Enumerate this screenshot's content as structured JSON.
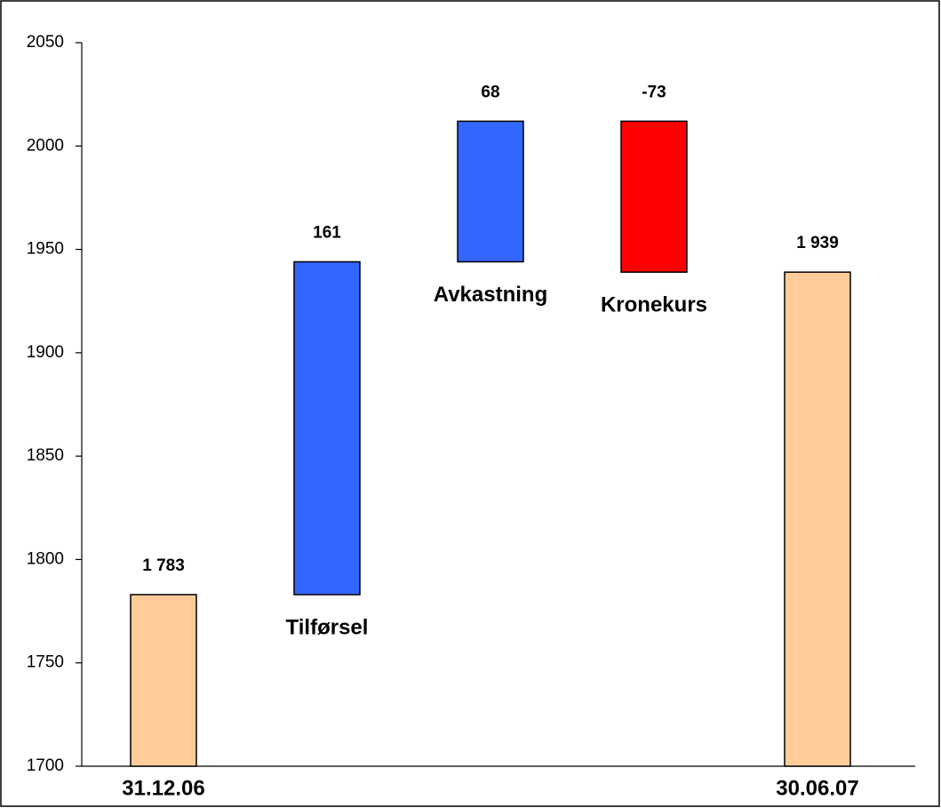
{
  "chart_data": {
    "type": "waterfall",
    "categories": [
      "31.12.06",
      "Tilførsel",
      "Avkastning",
      "Kronekurs",
      "30.06.07"
    ],
    "values": [
      1783,
      161,
      68,
      -73,
      1939
    ],
    "value_labels": [
      "1 783",
      "161",
      "68",
      "-73",
      "1 939"
    ],
    "measure": [
      "absolute",
      "relative",
      "relative",
      "relative",
      "total"
    ],
    "colors": [
      "#ffcc99",
      "#3366ff",
      "#3366ff",
      "#ff0000",
      "#ffcc99"
    ],
    "ylim": [
      1700,
      2050
    ],
    "yticks": [
      1700,
      1750,
      1800,
      1850,
      1900,
      1950,
      2000,
      2050
    ],
    "grid": false
  }
}
